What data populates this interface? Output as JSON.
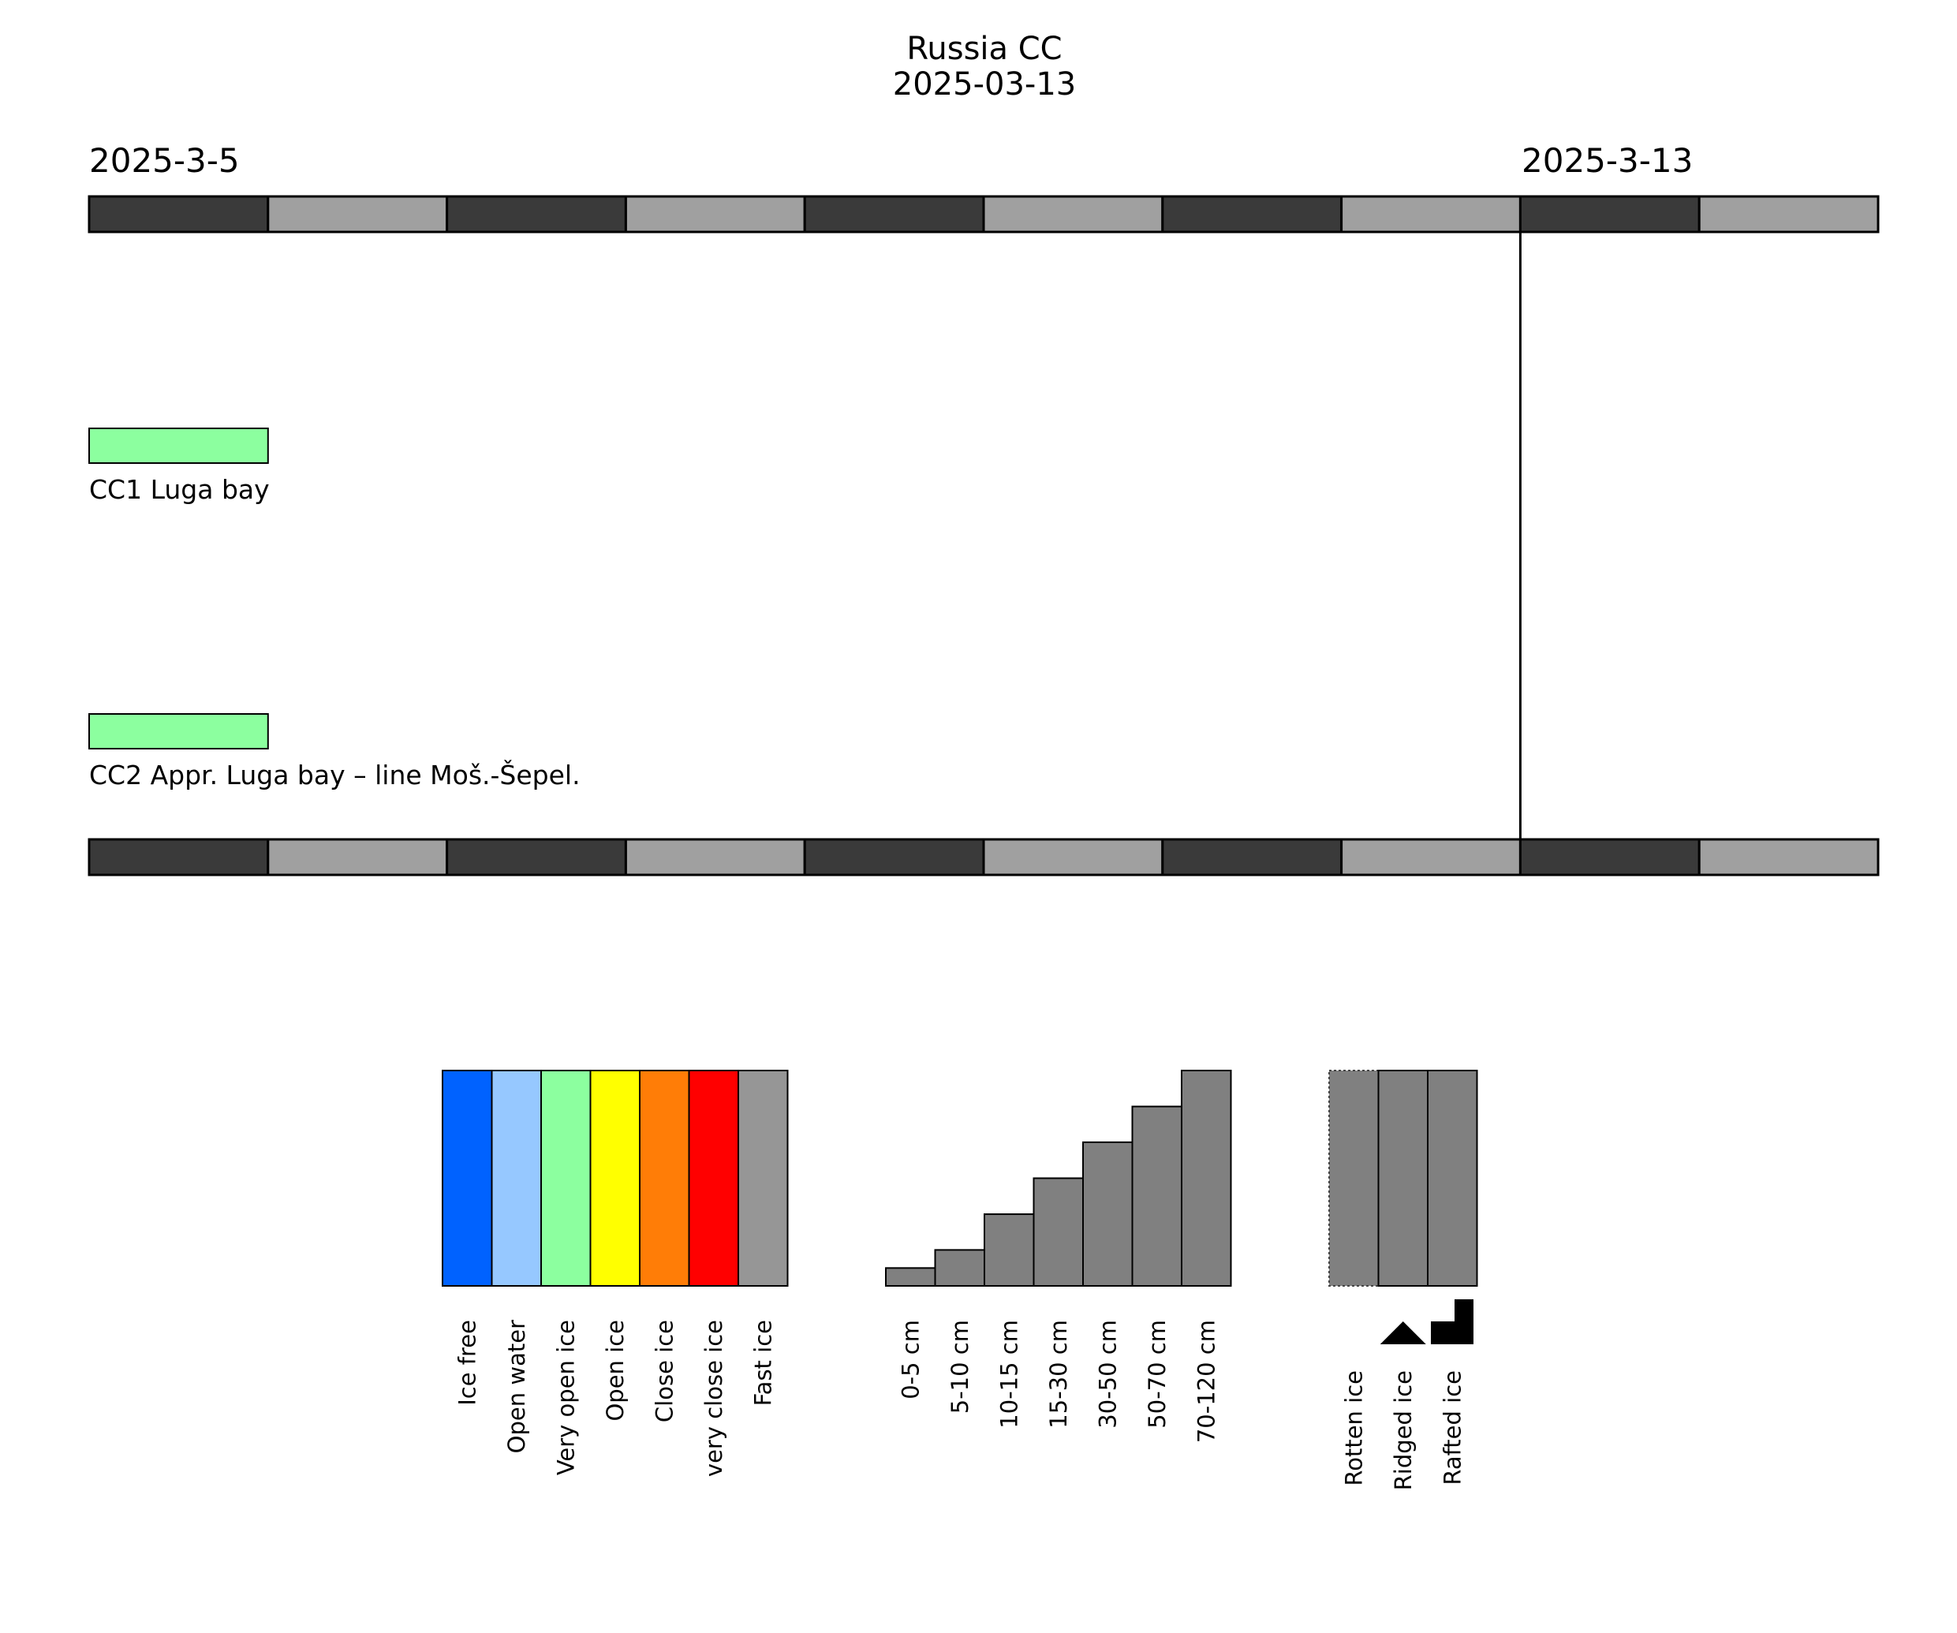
{
  "title": {
    "line1": "Russia CC",
    "line2": "2025-03-13"
  },
  "chart_data": {
    "type": "timeline",
    "start_date": "2025-3-5",
    "end_date_marker": "2025-3-13",
    "day_count": 10,
    "marker_day_index": 8,
    "day_band_colors": [
      "#3a3a3a",
      "#a0a0a0"
    ],
    "rows": [
      {
        "name": "CC1 Luga bay",
        "segments": [
          {
            "start_day": 0,
            "end_day": 1,
            "category": "Very open ice"
          }
        ]
      },
      {
        "name": "CC2 Appr. Luga bay – line Moš.-Šepel.",
        "segments": [
          {
            "start_day": 0,
            "end_day": 1,
            "category": "Very open ice"
          }
        ]
      }
    ]
  },
  "legend": {
    "concentration": [
      {
        "label": "Ice free",
        "color": "#0062ff"
      },
      {
        "label": "Open water",
        "color": "#96c8ff"
      },
      {
        "label": "Very open ice",
        "color": "#8cff9f"
      },
      {
        "label": "Open ice",
        "color": "#ffff00"
      },
      {
        "label": "Close ice",
        "color": "#ff7d07"
      },
      {
        "label": "very close ice",
        "color": "#ff0000"
      },
      {
        "label": "Fast ice",
        "color": "#969696"
      }
    ],
    "thickness": [
      {
        "label": "0-5 cm",
        "level": 0.083
      },
      {
        "label": "5-10 cm",
        "level": 0.167
      },
      {
        "label": "10-15 cm",
        "level": 0.333
      },
      {
        "label": "15-30 cm",
        "level": 0.5
      },
      {
        "label": "30-50 cm",
        "level": 0.667
      },
      {
        "label": "50-70 cm",
        "level": 0.833
      },
      {
        "label": "70-120 cm",
        "level": 1.0
      }
    ],
    "thickness_color": "#808080",
    "features": [
      {
        "label": "Rotten ice",
        "icon": "none"
      },
      {
        "label": "Ridged ice",
        "icon": "ridge-triangle-icon"
      },
      {
        "label": "Rafted ice",
        "icon": "rafted-step-icon"
      }
    ]
  }
}
